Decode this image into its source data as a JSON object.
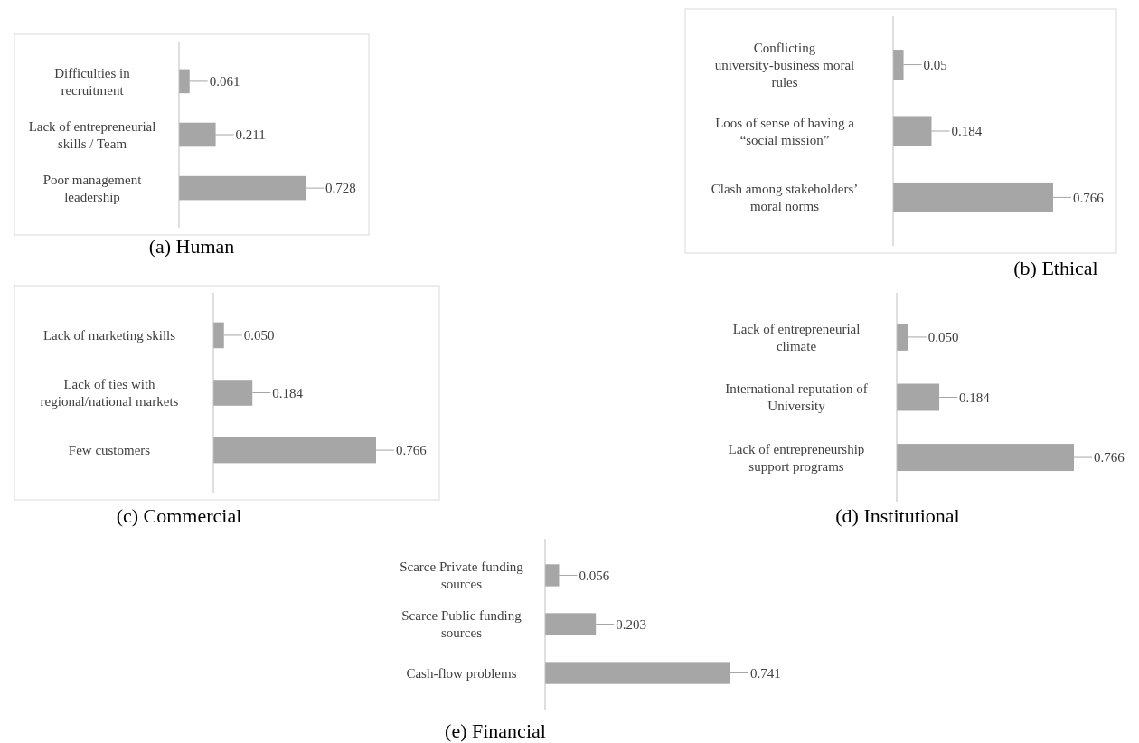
{
  "chart_data": [
    {
      "type": "bar",
      "orientation": "horizontal",
      "title": "(a) Human",
      "categories": [
        "Difficulties in recruitment",
        "Lack of entrepreneurial skills / Team",
        "Poor  management leadership"
      ],
      "values": [
        0.061,
        0.211,
        0.728
      ],
      "color": "#a6a6a6",
      "data_labels": true,
      "tick_labels": "y"
    },
    {
      "type": "bar",
      "orientation": "horizontal",
      "title": "(b) Ethical",
      "categories": [
        "Conflicting university-business moral rules",
        "Loos of sense of having a “social mission”",
        "Clash among stakeholders’ moral norms"
      ],
      "values": [
        0.05,
        0.184,
        0.766
      ],
      "color": "#a6a6a6",
      "data_labels": true,
      "tick_labels": "y"
    },
    {
      "type": "bar",
      "orientation": "horizontal",
      "title": "(c) Commercial",
      "categories": [
        "Lack of marketing skills",
        "Lack of ties with regional/national markets",
        "Few customers"
      ],
      "values": [
        0.05,
        0.184,
        0.766
      ],
      "value_labels": [
        "0.050",
        "0.184",
        "0.766"
      ],
      "color": "#a6a6a6",
      "tick_labels": "y"
    },
    {
      "type": "bar",
      "orientation": "horizontal",
      "title": "(d) Institutional",
      "categories": [
        "Lack of entrepreneurial climate",
        "International reputation of University",
        "Lack of entrepreneurship support programs"
      ],
      "values": [
        0.05,
        0.184,
        0.766
      ],
      "value_labels": [
        "0.050",
        "0.184",
        "0.766"
      ],
      "color": "#a6a6a6",
      "tick_labels": "y"
    },
    {
      "type": "bar",
      "orientation": "horizontal",
      "title": "(e) Financial",
      "categories": [
        "Scarce Private funding sources",
        "Scarce Public funding sources",
        "Cash-flow problems"
      ],
      "values": [
        0.056,
        0.203,
        0.741
      ],
      "color": "#a6a6a6",
      "data_labels": true,
      "tick_labels": "y"
    }
  ]
}
